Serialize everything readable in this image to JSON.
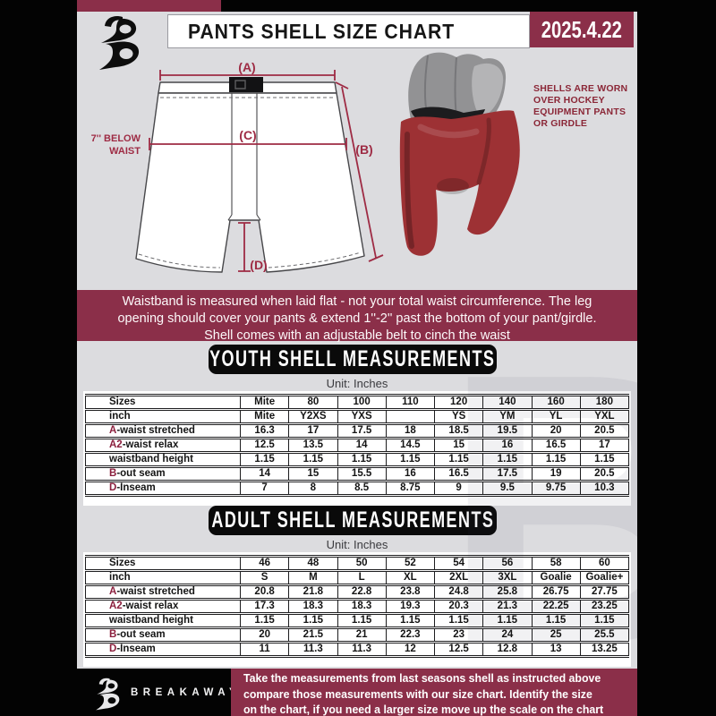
{
  "header": {
    "title": "PANTS SHELL SIZE CHART",
    "date": "2025.4.22"
  },
  "diagram": {
    "label_a": "(A)",
    "label_b": "(B)",
    "label_c": "(C)",
    "label_d": "(D)",
    "below_waist_line1": "7'' BELOW",
    "below_waist_line2": "WAIST",
    "side_note_lines": [
      "SHELLS ARE WORN",
      "OVER HOCKEY",
      "EQUIPMENT PANTS",
      "OR GIRDLE"
    ]
  },
  "info_banner": {
    "lines": [
      "Waistband is measured when laid flat - not your total waist circumference. The leg",
      "opening should cover your pants & extend 1''-2'' past the bottom of your pant/girdle.",
      "Shell comes with an adjustable belt to cinch the waist"
    ]
  },
  "youth": {
    "title": "YOUTH SHELL MEASUREMENTS",
    "unit": "Unit: Inches",
    "rows": [
      [
        "Sizes",
        "Mite",
        "80",
        "100",
        "110",
        "120",
        "140",
        "160",
        "180"
      ],
      [
        "inch",
        "Mite",
        "Y2XS",
        "YXS",
        "",
        "YS",
        "YM",
        "YL",
        "YXL"
      ],
      [
        "A-waist stretched",
        "16.3",
        "17",
        "17.5",
        "18",
        "18.5",
        "19.5",
        "20",
        "20.5"
      ],
      [
        "A2-waist relax",
        "12.5",
        "13.5",
        "14",
        "14.5",
        "15",
        "16",
        "16.5",
        "17"
      ],
      [
        "waistband height",
        "1.15",
        "1.15",
        "1.15",
        "1.15",
        "1.15",
        "1.15",
        "1.15",
        "1.15"
      ],
      [
        "B-out seam",
        "14",
        "15",
        "15.5",
        "16",
        "16.5",
        "17.5",
        "19",
        "20.5"
      ],
      [
        "D-Inseam",
        "7",
        "8",
        "8.5",
        "8.75",
        "9",
        "9.5",
        "9.75",
        "10.3"
      ]
    ]
  },
  "adult": {
    "title": "ADULT SHELL MEASUREMENTS",
    "unit": "Unit: Inches",
    "rows": [
      [
        "Sizes",
        "46",
        "48",
        "50",
        "52",
        "54",
        "56",
        "58",
        "60"
      ],
      [
        "inch",
        "S",
        "M",
        "L",
        "XL",
        "2XL",
        "3XL",
        "Goalie",
        "Goalie+"
      ],
      [
        "A-waist stretched",
        "20.8",
        "21.8",
        "22.8",
        "23.8",
        "24.8",
        "25.8",
        "26.75",
        "27.75"
      ],
      [
        "A2-waist relax",
        "17.3",
        "18.3",
        "18.3",
        "19.3",
        "20.3",
        "21.3",
        "22.25",
        "23.25"
      ],
      [
        "waistband height",
        "1.15",
        "1.15",
        "1.15",
        "1.15",
        "1.15",
        "1.15",
        "1.15",
        "1.15"
      ],
      [
        "B-out seam",
        "20",
        "21.5",
        "21",
        "22.3",
        "23",
        "24",
        "25",
        "25.5"
      ],
      [
        "D-Inseam",
        "11",
        "11.3",
        "11.3",
        "12",
        "12.5",
        "12.8",
        "13",
        "13.25"
      ]
    ]
  },
  "footer": {
    "brand": "BREAKAWAY",
    "lines": [
      "Take the measurements from last seasons shell as instructed above",
      "compare those measurements  with our size chart. Identify the size",
      "on the chart, if you need a larger size move up the scale on the chart"
    ]
  },
  "watermark_letter": "B",
  "colors": {
    "maroon": "#8b2f49",
    "annotation_red": "#9e2b44",
    "accent_letter": "#8b1f3d",
    "background_gray": "#dcdcdf"
  }
}
